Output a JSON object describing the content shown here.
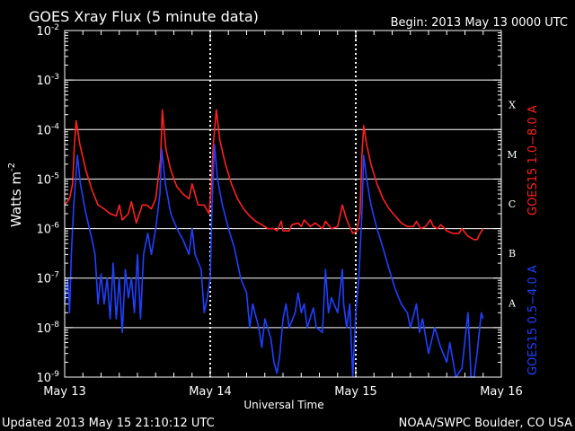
{
  "chart_data": {
    "type": "line",
    "title": "GOES Xray Flux (5 minute data)",
    "begin_label": "Begin:  2013 May 13 0000 UTC",
    "ylabel_base": "Watts m",
    "ylabel_exp": "-2",
    "xlabel": "Universal Time",
    "y_scale": "log",
    "ylim": [
      1e-09,
      0.01
    ],
    "y_ticks": [
      {
        "value": 1e-09,
        "base": "10",
        "exp": "-9"
      },
      {
        "value": 1e-08,
        "base": "10",
        "exp": "-8"
      },
      {
        "value": 1e-07,
        "base": "10",
        "exp": "-7"
      },
      {
        "value": 1e-06,
        "base": "10",
        "exp": "-6"
      },
      {
        "value": 1e-05,
        "base": "10",
        "exp": "-5"
      },
      {
        "value": 0.0001,
        "base": "10",
        "exp": "-4"
      },
      {
        "value": 0.001,
        "base": "10",
        "exp": "-3"
      },
      {
        "value": 0.01,
        "base": "10",
        "exp": "-2"
      }
    ],
    "xlim": [
      0,
      72
    ],
    "x_ticks": [
      {
        "hour": 0,
        "label": "May 13"
      },
      {
        "hour": 24,
        "label": "May 14"
      },
      {
        "hour": 48,
        "label": "May 15"
      },
      {
        "hour": 72,
        "label": "May 16"
      }
    ],
    "flare_classes": [
      {
        "label": "X",
        "value": 0.0001
      },
      {
        "label": "M",
        "value": 1e-05
      },
      {
        "label": "C",
        "value": 1e-06
      },
      {
        "label": "B",
        "value": 1e-07
      },
      {
        "label": "A",
        "value": 1e-08
      }
    ],
    "grid": true,
    "series": [
      {
        "name": "GOES15 1.0−8.0 A",
        "color": "#ff2020",
        "points": [
          [
            0.0,
            3e-06
          ],
          [
            0.8,
            4e-06
          ],
          [
            1.3,
            8e-06
          ],
          [
            1.6,
            5e-05
          ],
          [
            1.9,
            0.00015
          ],
          [
            2.5,
            5e-05
          ],
          [
            3.5,
            1.5e-05
          ],
          [
            4.5,
            6e-06
          ],
          [
            5.5,
            3e-06
          ],
          [
            6.5,
            2.5e-06
          ],
          [
            7.5,
            2e-06
          ],
          [
            8.5,
            1.8e-06
          ],
          [
            9.0,
            3e-06
          ],
          [
            9.5,
            1.5e-06
          ],
          [
            10.5,
            2e-06
          ],
          [
            11.0,
            3.5e-06
          ],
          [
            11.8,
            1.3e-06
          ],
          [
            12.8,
            3e-06
          ],
          [
            13.5,
            3e-06
          ],
          [
            14.3,
            2.5e-06
          ],
          [
            15.0,
            4e-06
          ],
          [
            15.8,
            2.5e-05
          ],
          [
            16.1,
            0.00025
          ],
          [
            16.7,
            4e-05
          ],
          [
            17.5,
            1.5e-05
          ],
          [
            18.5,
            7e-06
          ],
          [
            19.5,
            5e-06
          ],
          [
            20.5,
            4e-06
          ],
          [
            21.0,
            8e-06
          ],
          [
            21.3,
            6e-06
          ],
          [
            22.0,
            3e-06
          ],
          [
            23.0,
            3e-06
          ],
          [
            23.8,
            2e-06
          ],
          [
            24.2,
            8e-06
          ],
          [
            24.5,
            5e-05
          ],
          [
            25.0,
            0.00025
          ],
          [
            25.6,
            6e-05
          ],
          [
            26.5,
            2e-05
          ],
          [
            27.5,
            8e-06
          ],
          [
            28.5,
            4e-06
          ],
          [
            29.5,
            2.5e-06
          ],
          [
            30.5,
            1.8e-06
          ],
          [
            31.5,
            1.4e-06
          ],
          [
            32.5,
            1.2e-06
          ],
          [
            33.5,
            1e-06
          ],
          [
            34.5,
            1e-06
          ],
          [
            35.0,
            9e-07
          ],
          [
            35.7,
            1.4e-06
          ],
          [
            36.0,
            9e-07
          ],
          [
            37.0,
            9e-07
          ],
          [
            37.5,
            1.2e-06
          ],
          [
            38.5,
            1.3e-06
          ],
          [
            39.0,
            1.1e-06
          ],
          [
            39.5,
            1.5e-06
          ],
          [
            40.5,
            1.1e-06
          ],
          [
            41.3,
            1.3e-06
          ],
          [
            42.5,
            1e-06
          ],
          [
            43.0,
            1.4e-06
          ],
          [
            44.0,
            1e-06
          ],
          [
            45.0,
            1.1e-06
          ],
          [
            45.8,
            3e-06
          ],
          [
            46.5,
            1.5e-06
          ],
          [
            47.5,
            8e-07
          ],
          [
            48.2,
            9e-07
          ],
          [
            48.7,
            2e-06
          ],
          [
            49.0,
            3e-05
          ],
          [
            49.3,
            0.00012
          ],
          [
            49.8,
            5e-05
          ],
          [
            50.5,
            2e-05
          ],
          [
            51.5,
            8e-06
          ],
          [
            52.5,
            4e-06
          ],
          [
            53.5,
            2.5e-06
          ],
          [
            54.5,
            1.8e-06
          ],
          [
            55.5,
            1.3e-06
          ],
          [
            56.5,
            1.1e-06
          ],
          [
            57.5,
            1.1e-06
          ],
          [
            58.0,
            1.4e-06
          ],
          [
            58.7,
            1e-06
          ],
          [
            59.5,
            1.1e-06
          ],
          [
            60.3,
            1.5e-06
          ],
          [
            60.8,
            1.1e-06
          ],
          [
            61.5,
            1e-06
          ],
          [
            62.0,
            1.2e-06
          ],
          [
            63.0,
            9e-07
          ],
          [
            64.0,
            8e-07
          ],
          [
            65.0,
            8e-07
          ],
          [
            65.5,
            1e-06
          ],
          [
            66.5,
            7e-07
          ],
          [
            67.5,
            6e-07
          ],
          [
            68.0,
            6e-07
          ],
          [
            68.5,
            8e-07
          ],
          [
            69.0,
            1e-06
          ]
        ]
      },
      {
        "name": "GOES15 0.5−4.0 A",
        "color": "#2040ff",
        "points": [
          [
            0.0,
            3e-08
          ],
          [
            0.5,
            1e-07
          ],
          [
            0.8,
            2e-08
          ],
          [
            1.1,
            3e-07
          ],
          [
            1.5,
            3e-06
          ],
          [
            1.8,
            1e-05
          ],
          [
            2.1,
            3e-05
          ],
          [
            2.6,
            8e-06
          ],
          [
            3.5,
            2e-06
          ],
          [
            4.5,
            6e-07
          ],
          [
            5.0,
            3e-07
          ],
          [
            5.5,
            3e-08
          ],
          [
            6.0,
            1.2e-07
          ],
          [
            6.5,
            3e-08
          ],
          [
            7.0,
            1e-07
          ],
          [
            7.5,
            1.5e-08
          ],
          [
            8.0,
            2e-07
          ],
          [
            8.5,
            1.5e-08
          ],
          [
            9.0,
            1e-07
          ],
          [
            9.5,
            8e-09
          ],
          [
            10.0,
            1.5e-07
          ],
          [
            10.5,
            4e-08
          ],
          [
            11.0,
            1e-07
          ],
          [
            11.5,
            2e-08
          ],
          [
            12.0,
            3e-07
          ],
          [
            12.5,
            1.5e-08
          ],
          [
            13.0,
            3e-07
          ],
          [
            13.7,
            8e-07
          ],
          [
            14.3,
            3e-07
          ],
          [
            15.0,
            1e-06
          ],
          [
            15.7,
            5e-06
          ],
          [
            16.0,
            4e-05
          ],
          [
            16.6,
            8e-06
          ],
          [
            17.5,
            2e-06
          ],
          [
            18.5,
            1e-06
          ],
          [
            19.5,
            6e-07
          ],
          [
            20.5,
            3e-07
          ],
          [
            21.0,
            1e-06
          ],
          [
            21.5,
            3e-07
          ],
          [
            22.5,
            1.5e-07
          ],
          [
            23.0,
            2e-08
          ],
          [
            23.5,
            4e-08
          ],
          [
            24.0,
            1e-07
          ],
          [
            24.3,
            3e-06
          ],
          [
            24.7,
            5e-05
          ],
          [
            25.2,
            1e-05
          ],
          [
            26.0,
            3e-06
          ],
          [
            27.0,
            1e-06
          ],
          [
            28.0,
            4e-07
          ],
          [
            29.0,
            1e-07
          ],
          [
            30.0,
            5e-08
          ],
          [
            30.5,
            1e-08
          ],
          [
            31.0,
            3e-08
          ],
          [
            32.0,
            1e-08
          ],
          [
            32.5,
            4e-09
          ],
          [
            33.0,
            1.5e-08
          ],
          [
            34.0,
            6e-09
          ],
          [
            34.5,
            2e-09
          ],
          [
            35.0,
            1.2e-09
          ],
          [
            35.5,
            3e-09
          ],
          [
            36.0,
            1.5e-08
          ],
          [
            36.5,
            3e-08
          ],
          [
            37.0,
            1e-08
          ],
          [
            38.0,
            2e-08
          ],
          [
            38.5,
            5e-08
          ],
          [
            39.0,
            2e-08
          ],
          [
            39.5,
            3e-08
          ],
          [
            40.0,
            1e-08
          ],
          [
            41.0,
            2.5e-08
          ],
          [
            41.5,
            1e-08
          ],
          [
            42.5,
            8e-09
          ],
          [
            43.0,
            1.5e-07
          ],
          [
            43.5,
            2e-08
          ],
          [
            44.0,
            4e-08
          ],
          [
            45.0,
            2e-08
          ],
          [
            45.8,
            1.5e-07
          ],
          [
            46.0,
            3e-08
          ],
          [
            46.5,
            1e-08
          ],
          [
            47.0,
            3e-08
          ],
          [
            47.5,
            1e-09
          ],
          [
            48.0,
            2e-08
          ],
          [
            48.5,
            1e-07
          ],
          [
            49.0,
            2e-06
          ],
          [
            49.3,
            3e-05
          ],
          [
            49.8,
            1e-05
          ],
          [
            50.5,
            3e-06
          ],
          [
            51.5,
            1e-06
          ],
          [
            52.5,
            4e-07
          ],
          [
            53.5,
            1.5e-07
          ],
          [
            54.5,
            6e-08
          ],
          [
            55.5,
            3e-08
          ],
          [
            56.5,
            2e-08
          ],
          [
            57.0,
            1e-08
          ],
          [
            58.0,
            3e-08
          ],
          [
            58.5,
            8e-09
          ],
          [
            59.0,
            1.5e-08
          ],
          [
            60.0,
            3e-09
          ],
          [
            61.0,
            1e-08
          ],
          [
            62.0,
            4e-09
          ],
          [
            63.0,
            2e-09
          ],
          [
            63.5,
            5e-09
          ],
          [
            64.5,
            1e-09
          ],
          [
            65.5,
            1.5e-09
          ],
          [
            66.5,
            2e-08
          ],
          [
            67.0,
            1e-09
          ],
          [
            67.5,
            1e-09
          ],
          [
            68.0,
            3e-09
          ],
          [
            68.7,
            2e-08
          ],
          [
            69.0,
            1.5e-08
          ]
        ]
      }
    ]
  },
  "footer": {
    "updated": "Updated 2013 May 15 21:10:12 UTC",
    "source": "NOAA/SWPC Boulder, CO USA"
  }
}
